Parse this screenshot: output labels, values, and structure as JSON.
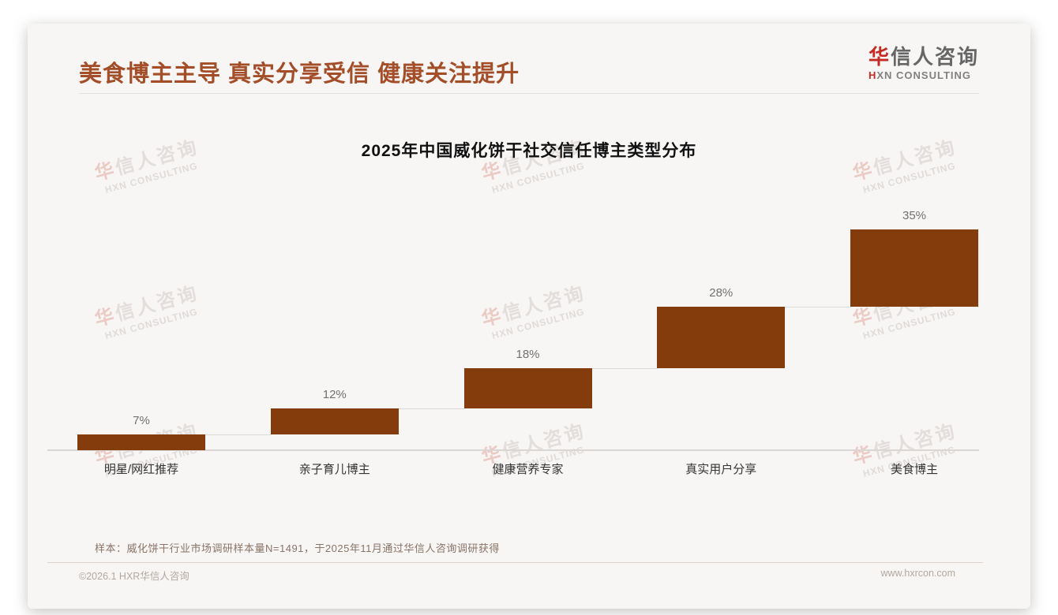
{
  "header": {
    "title": "美食博主主导 真实分享受信 健康关注提升"
  },
  "logo": {
    "zh_accent": "华",
    "zh_rest": "信人咨询",
    "en_accent": "H",
    "en_rest": "XN CONSULTING"
  },
  "chart_data": {
    "type": "bar",
    "subtype": "waterfall-steps",
    "title": "2025年中国威化饼干社交信任博主类型分布",
    "categories": [
      "明星/网红推荐",
      "亲子育儿博主",
      "健康营养专家",
      "真实用户分享",
      "美食博主"
    ],
    "values": [
      7,
      12,
      18,
      28,
      35
    ],
    "labels": [
      "7%",
      "12%",
      "18%",
      "28%",
      "35%"
    ],
    "unit": "%",
    "ylim": [
      0,
      100
    ],
    "total": 100,
    "bar_color": "#843C0C",
    "grid": false,
    "legend": false,
    "note": "each bar starts at the cumulative top of the previous bar, connected by light gray step lines"
  },
  "footnote": {
    "text": "样本：威化饼干行业市场调研样本量N=1491，于2025年11月通过华信人咨询调研获得"
  },
  "footer": {
    "left": "©2026.1 HXR华信人咨询",
    "right": "www.hxrcon.com"
  },
  "watermark": {
    "zh_accent": "华",
    "zh_rest": "信人咨询",
    "en": "HXN CONSULTING"
  },
  "colors": {
    "bar": "#843C0C",
    "page_title": "#A34E28",
    "logo_red": "#C32B23",
    "logo_gray": "#666666",
    "value_label": "#707070",
    "category_label": "#333333",
    "footnote": "#8B7365",
    "footer": "#B3A79D",
    "card_bg": "#f7f6f5",
    "baseline": "#d9d6d3"
  }
}
